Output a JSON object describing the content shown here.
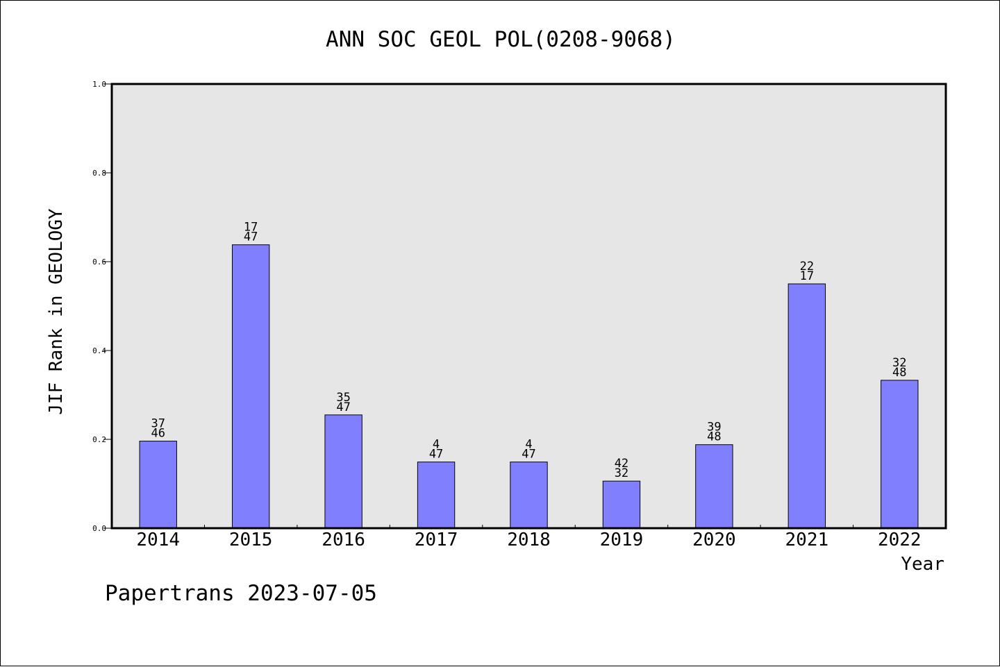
{
  "chart_data": {
    "type": "bar",
    "title": "ANN SOC GEOL POL(0208-9068)",
    "xlabel": "Year",
    "ylabel": "JIF Rank in GEOLOGY",
    "categories": [
      "2014",
      "2015",
      "2016",
      "2017",
      "2018",
      "2019",
      "2020",
      "2021",
      "2022"
    ],
    "values": [
      0.196,
      0.638,
      0.255,
      0.149,
      0.149,
      0.106,
      0.188,
      0.55,
      0.333
    ],
    "bar_labels": [
      [
        "37",
        "46"
      ],
      [
        "17",
        "47"
      ],
      [
        "35",
        "47"
      ],
      [
        "4",
        "47"
      ],
      [
        "4",
        "47"
      ],
      [
        "42",
        "32"
      ],
      [
        "39",
        "48"
      ],
      [
        "22",
        "17"
      ],
      [
        "32",
        "48"
      ]
    ],
    "ylim": [
      0,
      1.0
    ],
    "yticks": [
      "0.0",
      "0.2",
      "0.4",
      "0.6",
      "0.8",
      "1.0"
    ],
    "grid": false,
    "legend": "none",
    "colors": {
      "bar": "#8080ff",
      "plot_background": "#e6e6e6"
    }
  },
  "footer": {
    "credit": "Papertrans 2023-07-05"
  }
}
